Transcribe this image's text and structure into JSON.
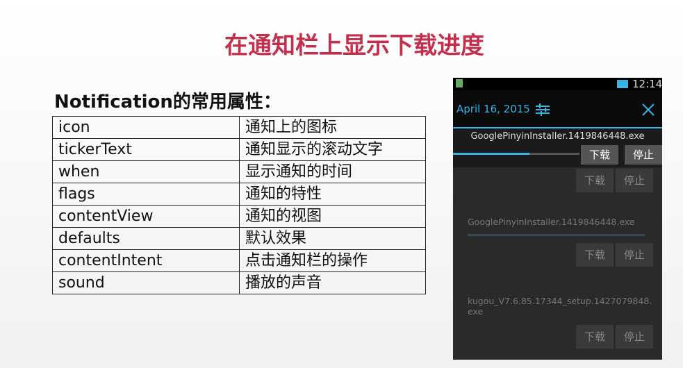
{
  "slide": {
    "title": "在通知栏上显示下载进度",
    "subtitle": "Notification的常用属性：",
    "table": {
      "rows": [
        [
          "icon",
          "通知上的图标"
        ],
        [
          "tickerText",
          "通知显示的滚动文字"
        ],
        [
          "when",
          "显示通知的时间"
        ],
        [
          "flags",
          "通知的特性"
        ],
        [
          "contentView",
          "通知的视图"
        ],
        [
          "defaults",
          "默认效果"
        ],
        [
          "contentIntent",
          "点击通知栏的操作"
        ],
        [
          "sound",
          "播放的声音"
        ]
      ]
    },
    "phone": {
      "status_time": "12:14",
      "date": "April 16, 2015",
      "notification": {
        "file": "GooglePinyinInstaller.1419846448.exe",
        "download": "下载",
        "stop": "停止"
      },
      "list": [
        {
          "download": "下载",
          "stop": "停止"
        },
        {
          "file": "GooglePinyinInstaller.1419846448.exe",
          "download": "下载",
          "stop": "停止"
        },
        {
          "file": "kugou_V7.6.85.17344_setup.1427079848.exe",
          "download": "下载",
          "stop": "停止"
        }
      ]
    }
  }
}
